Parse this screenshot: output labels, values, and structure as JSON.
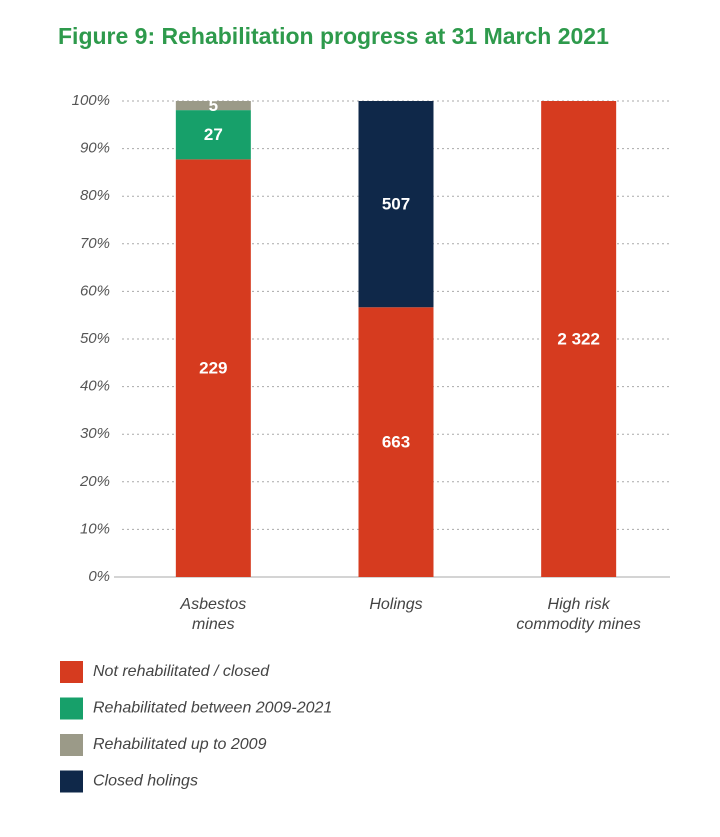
{
  "chart_data": {
    "type": "bar",
    "stacking": "percent",
    "title": "Figure 9: Rehabilitation progress at 31 March 2021",
    "categories": [
      "Asbestos mines",
      "Holings",
      "High risk commodity mines"
    ],
    "series": [
      {
        "name": "Not rehabilitated / closed",
        "color": "#d63b1f",
        "values": [
          229,
          663,
          2322
        ],
        "value_labels": [
          "229",
          "663",
          "2 322"
        ]
      },
      {
        "name": "Rehabilitated between 2009-2021",
        "color": "#17a06a",
        "values": [
          27,
          null,
          null
        ]
      },
      {
        "name": "Rehabilitated up to 2009",
        "color": "#9b9a88",
        "values": [
          5,
          null,
          null
        ]
      },
      {
        "name": "Closed holings",
        "color": "#0f2849",
        "values": [
          null,
          507,
          null
        ]
      }
    ],
    "ylim": [
      0,
      100
    ],
    "yticks": [
      {
        "value": 0,
        "label": "0%"
      },
      {
        "value": 10,
        "label": "10%"
      },
      {
        "value": 20,
        "label": "20%"
      },
      {
        "value": 30,
        "label": "30%"
      },
      {
        "value": 40,
        "label": "40%"
      },
      {
        "value": 50,
        "label": "50%"
      },
      {
        "value": 60,
        "label": "60%"
      },
      {
        "value": 70,
        "label": "70%"
      },
      {
        "value": 80,
        "label": "80%"
      },
      {
        "value": 90,
        "label": "90%"
      },
      {
        "value": 100,
        "label": "100%"
      }
    ],
    "grid": true
  }
}
